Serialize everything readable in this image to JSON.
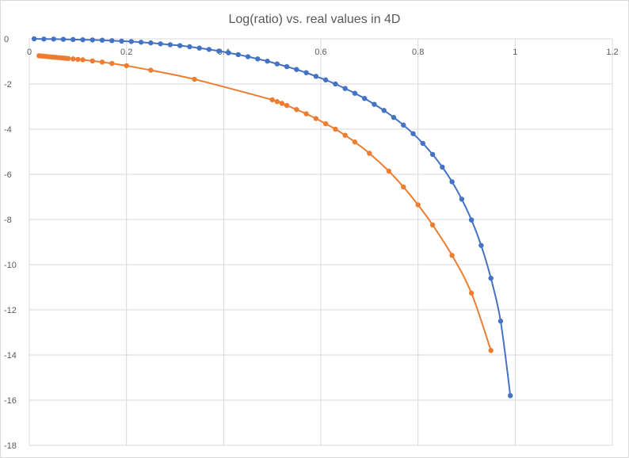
{
  "chart_data": {
    "type": "scatter",
    "title": "Log(ratio) vs. real values in 4D",
    "xlabel": "",
    "ylabel": "",
    "xlim": [
      0,
      1.2
    ],
    "ylim": [
      -18,
      0
    ],
    "x_ticks": [
      0,
      0.2,
      0.4,
      0.6,
      0.8,
      1,
      1.2
    ],
    "x_tick_labels": [
      "0",
      "0.2",
      "0.4",
      "0.6",
      "0.8",
      "1",
      "1.2"
    ],
    "y_ticks": [
      0,
      -2,
      -4,
      -6,
      -8,
      -10,
      -12,
      -14,
      -16,
      -18
    ],
    "y_tick_labels": [
      "0",
      "-2",
      "-4",
      "-6",
      "-8",
      "-10",
      "-12",
      "-14",
      "-16",
      "-18"
    ],
    "grid": true,
    "legend": "none",
    "smooth_lines": true,
    "series": [
      {
        "color": "#4472c4",
        "points": [
          [
            0.01,
            0
          ],
          [
            0.03,
            -0.01
          ],
          [
            0.05,
            -0.01
          ],
          [
            0.07,
            -0.02
          ],
          [
            0.09,
            -0.03
          ],
          [
            0.11,
            -0.04
          ],
          [
            0.13,
            -0.05
          ],
          [
            0.15,
            -0.06
          ],
          [
            0.17,
            -0.08
          ],
          [
            0.19,
            -0.1
          ],
          [
            0.21,
            -0.12
          ],
          [
            0.23,
            -0.15
          ],
          [
            0.25,
            -0.18
          ],
          [
            0.27,
            -0.22
          ],
          [
            0.29,
            -0.26
          ],
          [
            0.31,
            -0.3
          ],
          [
            0.33,
            -0.35
          ],
          [
            0.35,
            -0.41
          ],
          [
            0.37,
            -0.47
          ],
          [
            0.39,
            -0.54
          ],
          [
            0.41,
            -0.62
          ],
          [
            0.43,
            -0.7
          ],
          [
            0.45,
            -0.79
          ],
          [
            0.47,
            -0.89
          ],
          [
            0.49,
            -0.99
          ],
          [
            0.51,
            -1.11
          ],
          [
            0.53,
            -1.23
          ],
          [
            0.55,
            -1.36
          ],
          [
            0.57,
            -1.5
          ],
          [
            0.59,
            -1.66
          ],
          [
            0.61,
            -1.82
          ],
          [
            0.63,
            -2.0
          ],
          [
            0.65,
            -2.2
          ],
          [
            0.67,
            -2.41
          ],
          [
            0.69,
            -2.64
          ],
          [
            0.71,
            -2.9
          ],
          [
            0.73,
            -3.17
          ],
          [
            0.75,
            -3.48
          ],
          [
            0.77,
            -3.82
          ],
          [
            0.79,
            -4.2
          ],
          [
            0.81,
            -4.63
          ],
          [
            0.83,
            -5.12
          ],
          [
            0.85,
            -5.68
          ],
          [
            0.87,
            -6.33
          ],
          [
            0.89,
            -7.1
          ],
          [
            0.91,
            -8.02
          ],
          [
            0.93,
            -9.15
          ],
          [
            0.95,
            -10.6
          ],
          [
            0.97,
            -12.5
          ],
          [
            0.99,
            -15.8
          ]
        ]
      },
      {
        "color": "#ed7d31",
        "points": [
          [
            0.02,
            -0.75
          ],
          [
            0.025,
            -0.76
          ],
          [
            0.03,
            -0.77
          ],
          [
            0.035,
            -0.78
          ],
          [
            0.04,
            -0.79
          ],
          [
            0.045,
            -0.8
          ],
          [
            0.05,
            -0.81
          ],
          [
            0.055,
            -0.82
          ],
          [
            0.06,
            -0.83
          ],
          [
            0.065,
            -0.84
          ],
          [
            0.07,
            -0.85
          ],
          [
            0.075,
            -0.86
          ],
          [
            0.08,
            -0.87
          ],
          [
            0.09,
            -0.89
          ],
          [
            0.1,
            -0.91
          ],
          [
            0.11,
            -0.93
          ],
          [
            0.13,
            -0.98
          ],
          [
            0.15,
            -1.03
          ],
          [
            0.17,
            -1.09
          ],
          [
            0.2,
            -1.19
          ],
          [
            0.25,
            -1.39
          ],
          [
            0.34,
            -1.79
          ],
          [
            0.5,
            -2.7
          ],
          [
            0.51,
            -2.78
          ],
          [
            0.52,
            -2.86
          ],
          [
            0.53,
            -2.95
          ],
          [
            0.55,
            -3.13
          ],
          [
            0.57,
            -3.32
          ],
          [
            0.59,
            -3.53
          ],
          [
            0.61,
            -3.76
          ],
          [
            0.63,
            -4.0
          ],
          [
            0.65,
            -4.27
          ],
          [
            0.67,
            -4.57
          ],
          [
            0.7,
            -5.07
          ],
          [
            0.74,
            -5.86
          ],
          [
            0.77,
            -6.56
          ],
          [
            0.8,
            -7.35
          ],
          [
            0.83,
            -8.24
          ],
          [
            0.87,
            -9.59
          ],
          [
            0.91,
            -11.26
          ],
          [
            0.95,
            -13.8
          ]
        ]
      }
    ]
  }
}
